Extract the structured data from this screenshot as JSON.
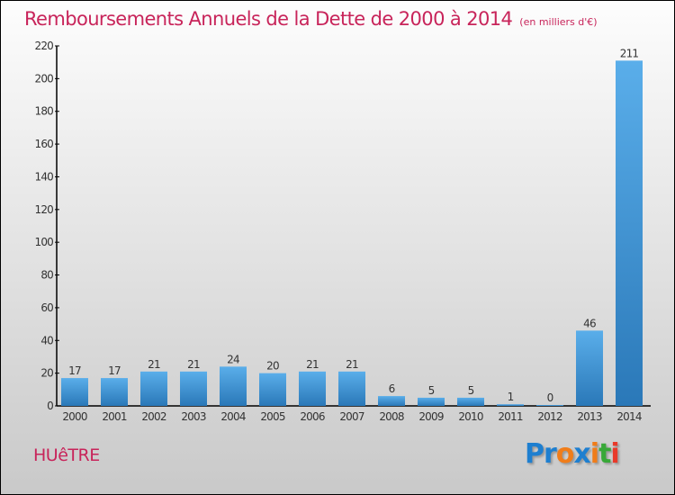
{
  "chart_data": {
    "type": "bar",
    "title": "Remboursements Annuels de la Dette de 2000 à 2014",
    "subtitle": "(en milliers d'€)",
    "categories": [
      "2000",
      "2001",
      "2002",
      "2003",
      "2004",
      "2005",
      "2006",
      "2007",
      "2008",
      "2009",
      "2010",
      "2011",
      "2012",
      "2013",
      "2014"
    ],
    "values": [
      17,
      17,
      21,
      21,
      24,
      20,
      21,
      21,
      6,
      5,
      5,
      1,
      0,
      46,
      211
    ],
    "ylim": [
      0,
      220
    ],
    "yticks": [
      0,
      20,
      40,
      60,
      80,
      100,
      120,
      140,
      160,
      180,
      200,
      220
    ],
    "xlabel": "",
    "ylabel": "",
    "bar_color": "#4a9fdf"
  },
  "town": "HUêTRE",
  "logo": {
    "text": "Proxiti",
    "letters": [
      {
        "t": "P",
        "c": "#1e7fd0"
      },
      {
        "t": "r",
        "c": "#1e7fd0"
      },
      {
        "t": "o",
        "c": "#f07d1a"
      },
      {
        "t": "x",
        "c": "#1e7fd0"
      },
      {
        "t": "i",
        "c": "#f07d1a"
      },
      {
        "t": "t",
        "c": "#38a838"
      },
      {
        "t": "i",
        "c": "#e83a2a"
      }
    ]
  }
}
